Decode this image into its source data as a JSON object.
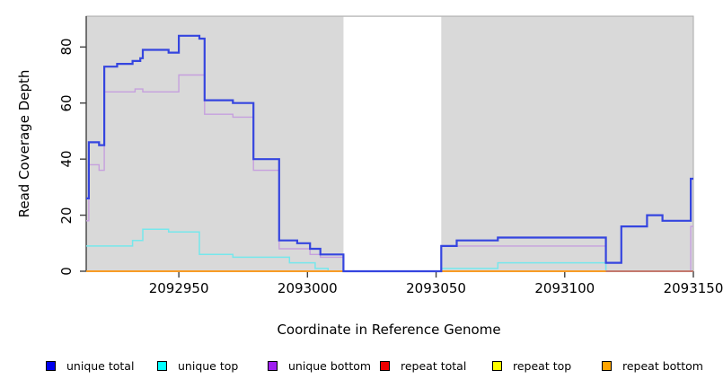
{
  "y_axis": {
    "label": "Read Coverage Depth",
    "ticks": [
      "0",
      "20",
      "40",
      "60",
      "80"
    ],
    "tick_values": [
      0,
      20,
      40,
      60,
      80
    ]
  },
  "x_axis": {
    "label": "Coordinate in Reference Genome",
    "ticks": [
      "2092950",
      "2093000",
      "2093050",
      "2093100",
      "2093150"
    ],
    "tick_values": [
      2092950,
      2093000,
      2093050,
      2093100,
      2093150
    ]
  },
  "legend": [
    {
      "label": "unique total",
      "color": "#0000EE"
    },
    {
      "label": "unique top",
      "color": "#00FFFF"
    },
    {
      "label": "unique bottom",
      "color": "#A020F0"
    },
    {
      "label": "repeat total",
      "color": "#EE0000"
    },
    {
      "label": "repeat top",
      "color": "#FFFF00"
    },
    {
      "label": "repeat bottom",
      "color": "#FFA500"
    }
  ],
  "chart_data": {
    "type": "line",
    "subtype": "step",
    "title": "",
    "xlabel": "Coordinate in Reference Genome",
    "ylabel": "Read Coverage Depth",
    "xlim": [
      2092914,
      2093150
    ],
    "ylim": [
      0,
      91
    ],
    "grid": false,
    "legend_position": "bottom",
    "background": "#D9D9D9",
    "gap_region": {
      "x_start": 2093014,
      "x_end": 2093052,
      "color": "#FFFFFF",
      "note": "no-coverage window drawn white"
    },
    "series": [
      {
        "name": "unique total",
        "legend_color": "#0000EE",
        "line_color": "#3545DF",
        "line_width": 2.2,
        "points": [
          [
            2092914,
            26
          ],
          [
            2092915,
            46
          ],
          [
            2092919,
            45
          ],
          [
            2092921,
            73
          ],
          [
            2092926,
            74
          ],
          [
            2092932,
            75
          ],
          [
            2092935,
            76
          ],
          [
            2092936,
            79
          ],
          [
            2092946,
            78
          ],
          [
            2092950,
            84
          ],
          [
            2092958,
            83
          ],
          [
            2092960,
            61
          ],
          [
            2092971,
            60
          ],
          [
            2092979,
            40
          ],
          [
            2092989,
            11
          ],
          [
            2092996,
            10
          ],
          [
            2093001,
            8
          ],
          [
            2093005,
            6
          ],
          [
            2093014,
            0
          ],
          [
            2093052,
            9
          ],
          [
            2093058,
            11
          ],
          [
            2093074,
            12
          ],
          [
            2093116,
            3
          ],
          [
            2093122,
            16
          ],
          [
            2093132,
            20
          ],
          [
            2093138,
            18
          ],
          [
            2093149,
            33
          ],
          [
            2093150,
            33
          ]
        ]
      },
      {
        "name": "unique top",
        "legend_color": "#00FFFF",
        "line_color": "#76E7EC",
        "line_width": 1.5,
        "points": [
          [
            2092914,
            9
          ],
          [
            2092932,
            11
          ],
          [
            2092936,
            15
          ],
          [
            2092946,
            14
          ],
          [
            2092958,
            6
          ],
          [
            2092971,
            5
          ],
          [
            2092993,
            3
          ],
          [
            2093003,
            1
          ],
          [
            2093008,
            0
          ],
          [
            2093052,
            1
          ],
          [
            2093074,
            3
          ],
          [
            2093116,
            0
          ],
          [
            2093150,
            0
          ]
        ]
      },
      {
        "name": "unique bottom",
        "legend_color": "#A020F0",
        "line_color": "#C6A0DE",
        "line_width": 1.4,
        "points": [
          [
            2092914,
            18
          ],
          [
            2092915,
            38
          ],
          [
            2092919,
            36
          ],
          [
            2092921,
            64
          ],
          [
            2092933,
            65
          ],
          [
            2092936,
            64
          ],
          [
            2092950,
            70
          ],
          [
            2092960,
            56
          ],
          [
            2092971,
            55
          ],
          [
            2092979,
            36
          ],
          [
            2092989,
            8
          ],
          [
            2093001,
            6
          ],
          [
            2093005,
            5
          ],
          [
            2093014,
            0
          ],
          [
            2093052,
            9
          ],
          [
            2093116,
            0
          ],
          [
            2093149,
            16
          ],
          [
            2093150,
            16
          ]
        ]
      },
      {
        "name": "repeat total",
        "legend_color": "#EE0000",
        "line_color": "#C2576F",
        "line_width": 1.4,
        "points": [
          [
            2092914,
            0
          ],
          [
            2093150,
            0
          ]
        ]
      },
      {
        "name": "repeat top",
        "legend_color": "#FFFF00",
        "line_color": "#FFFF00",
        "line_width": 1.4,
        "points": [
          [
            2092914,
            0
          ],
          [
            2093150,
            0
          ]
        ]
      },
      {
        "name": "repeat bottom",
        "legend_color": "#FFA500",
        "line_color": "#FF9D1E",
        "line_width": 1.8,
        "points": [
          [
            2092914,
            0
          ],
          [
            2093116,
            0
          ]
        ]
      }
    ]
  }
}
